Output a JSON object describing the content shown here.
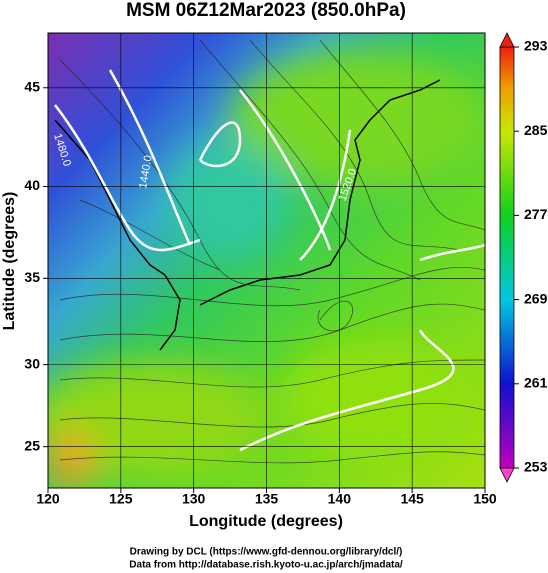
{
  "chart_data": {
    "type": "map",
    "title": "MSM 06Z12Mar2023 (850.0hPa)",
    "x_label": "Longitude (degrees)",
    "y_label": "Latitude  (degrees)",
    "projection": "mercator",
    "grid": true,
    "xlim": [
      120,
      150
    ],
    "xticks": [
      120,
      125,
      130,
      135,
      140,
      145,
      150
    ],
    "ylim": [
      22.4,
      47.6
    ],
    "yticks": [
      25,
      30,
      35,
      40,
      45
    ],
    "colorbar": {
      "clim": [
        253,
        293
      ],
      "ticks": [
        253,
        261,
        269,
        277,
        285,
        293
      ]
    },
    "contour_labels": [
      "1480.0",
      "1440.0",
      "1520.0"
    ],
    "footer": [
      "Drawing by DCL (https://www.gfd-dennou.org/library/dcl/)",
      "Data from http://database.rish.kyoto-u.ac.jp/arch/jmadata/"
    ]
  }
}
